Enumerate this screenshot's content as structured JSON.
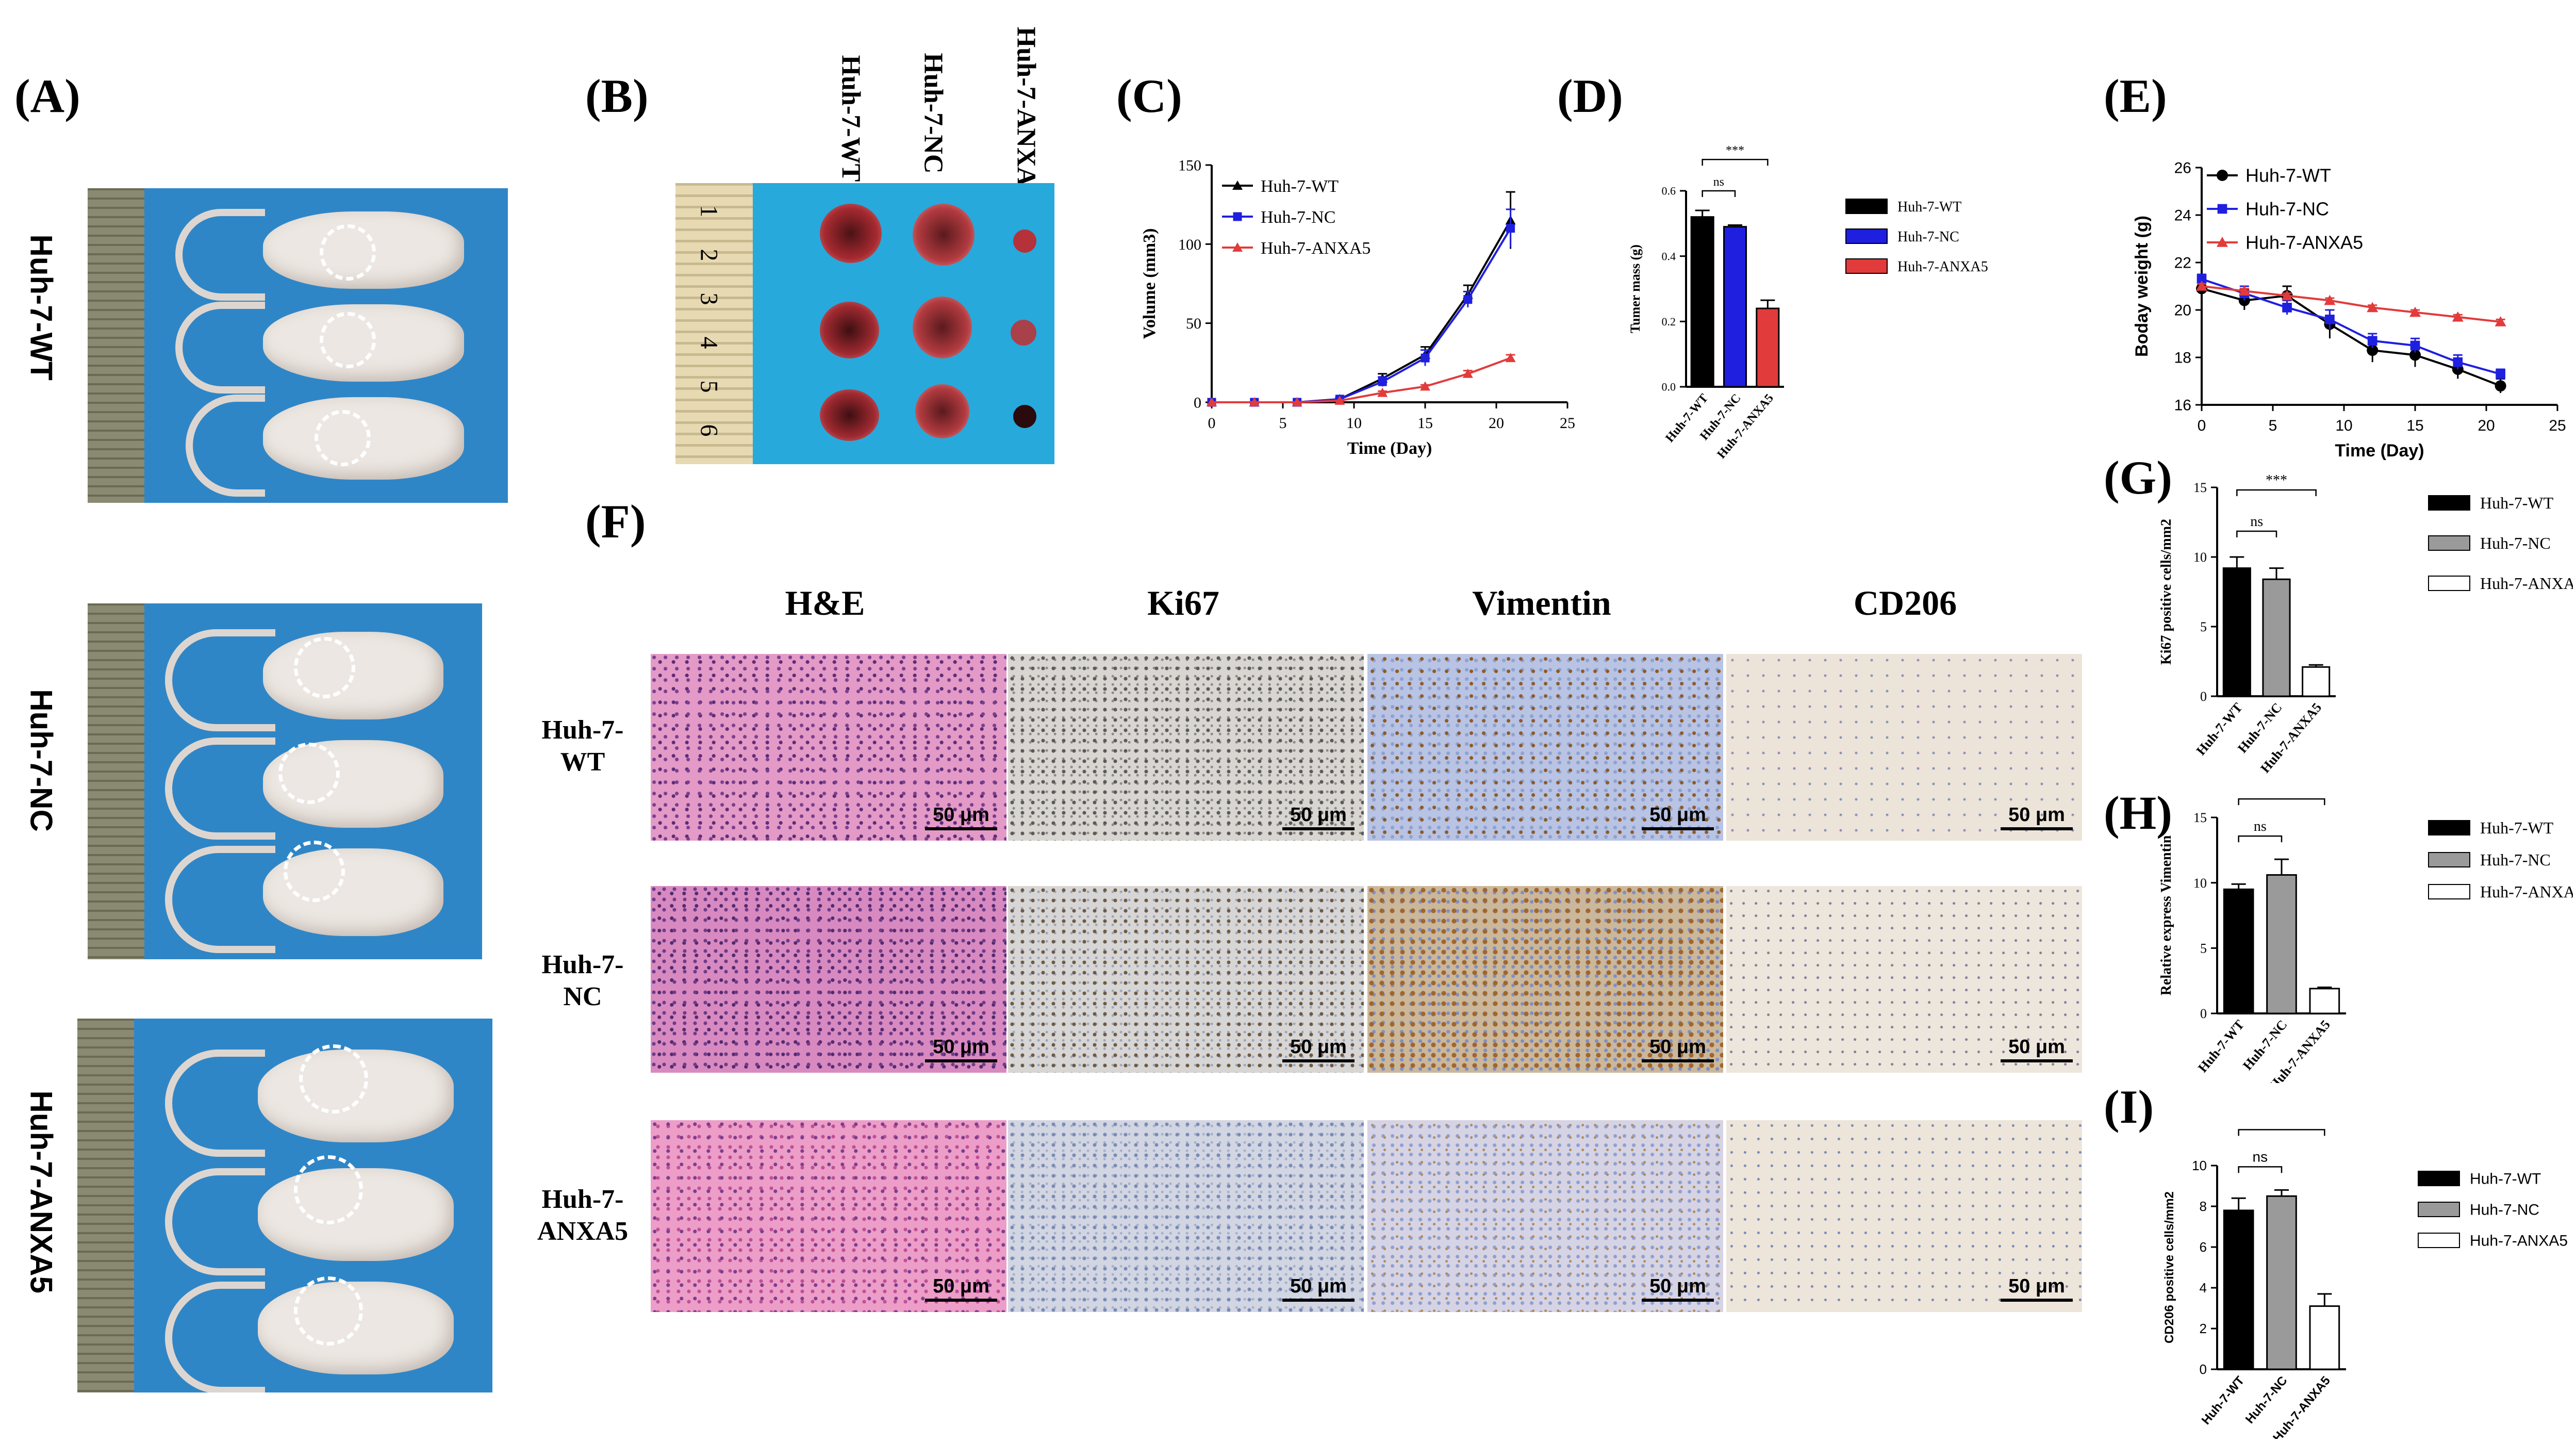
{
  "panels": {
    "A": "(A)",
    "B": "(B)",
    "C": "(C)",
    "D": "(D)",
    "E": "(E)",
    "F": "(F)",
    "G": "(G)",
    "H": "(H)",
    "I": "(I)"
  },
  "mouse_groups": [
    "Huh-7-WT",
    "Huh-7-NC",
    "Huh-7-ANXA5"
  ],
  "ruler_numbers": [
    "1",
    "2",
    "3",
    "4",
    "5",
    "6"
  ],
  "tumor_columns": [
    "Huh-7-WT",
    "Huh-7-NC",
    "Huh-7-ANXA5"
  ],
  "ihc": {
    "columns": [
      "H&E",
      "Ki67",
      "Vimentin",
      "CD206"
    ],
    "rows": [
      "Huh-7-\nWT",
      "Huh-7-\nNC",
      "Huh-7-\nANXA5"
    ],
    "scale_label": "50 μm"
  },
  "colors": {
    "wt": "#000000",
    "nc": "#1f1fe0",
    "anxa5": "#e23b3b",
    "nc_gray": "#9a9a9a",
    "anxa5_white": "#ffffff"
  },
  "chart_data": [
    {
      "id": "C",
      "type": "line",
      "xlabel": "Time (Day)",
      "ylabel": "Volume (mm3)",
      "xlim": [
        0,
        25
      ],
      "ylim": [
        0,
        150
      ],
      "xticks": [
        0,
        5,
        10,
        15,
        20,
        25
      ],
      "yticks": [
        0,
        50,
        100,
        150
      ],
      "legend": "top-left",
      "series": [
        {
          "name": "Huh-7-WT",
          "marker": "triangle",
          "x": [
            0,
            3,
            6,
            9,
            12,
            15,
            18,
            21
          ],
          "y": [
            0,
            0,
            0,
            2,
            15,
            30,
            68,
            115
          ],
          "err": [
            0,
            0,
            0,
            1,
            3,
            5,
            6,
            18
          ]
        },
        {
          "name": "Huh-7-NC",
          "marker": "square",
          "x": [
            0,
            3,
            6,
            9,
            12,
            15,
            18,
            21
          ],
          "y": [
            0,
            0,
            0,
            2,
            13,
            28,
            65,
            110
          ],
          "err": [
            0,
            0,
            0,
            1,
            3,
            5,
            5,
            12
          ]
        },
        {
          "name": "Huh-7-ANXA5",
          "marker": "triangle",
          "x": [
            0,
            3,
            6,
            9,
            12,
            15,
            18,
            21
          ],
          "y": [
            0,
            0,
            0,
            1,
            6,
            10,
            18,
            28
          ],
          "err": [
            0,
            0,
            0,
            0,
            1,
            1,
            2,
            2
          ]
        }
      ]
    },
    {
      "id": "D",
      "type": "bar",
      "ylabel": "Tumer mass (g)",
      "ylim": [
        0,
        0.6
      ],
      "yticks": [
        0.0,
        0.2,
        0.4,
        0.6
      ],
      "categories": [
        "Huh-7-WT",
        "Huh-7-NC",
        "Huh-7-ANXA5"
      ],
      "values": [
        0.52,
        0.49,
        0.24
      ],
      "err": [
        0.02,
        0.005,
        0.025
      ],
      "significance": [
        {
          "label": "ns"
        },
        {
          "label": "***"
        }
      ],
      "legend": "right"
    },
    {
      "id": "E",
      "type": "line",
      "xlabel": "Time (Day)",
      "ylabel": "Boday weight (g)",
      "xlim": [
        0,
        25
      ],
      "ylim": [
        16,
        26
      ],
      "xticks": [
        0,
        5,
        10,
        15,
        20,
        25
      ],
      "yticks": [
        16,
        18,
        20,
        22,
        24,
        26
      ],
      "legend": "top-left",
      "series": [
        {
          "name": "Huh-7-WT",
          "marker": "circle",
          "x": [
            0,
            3,
            6,
            9,
            12,
            15,
            18,
            21
          ],
          "y": [
            20.9,
            20.4,
            20.6,
            19.4,
            18.3,
            18.1,
            17.5,
            16.8
          ],
          "err": [
            0.3,
            0.4,
            0.4,
            0.6,
            0.5,
            0.5,
            0.4,
            0.3
          ]
        },
        {
          "name": "Huh-7-NC",
          "marker": "square",
          "x": [
            0,
            3,
            6,
            9,
            12,
            15,
            18,
            21
          ],
          "y": [
            21.3,
            20.7,
            20.1,
            19.6,
            18.7,
            18.5,
            17.8,
            17.3
          ],
          "err": [
            0.2,
            0.3,
            0.3,
            0.4,
            0.3,
            0.3,
            0.3,
            0.2
          ]
        },
        {
          "name": "Huh-7-ANXA5",
          "marker": "triangle",
          "x": [
            0,
            3,
            6,
            9,
            12,
            15,
            18,
            21
          ],
          "y": [
            21.0,
            20.8,
            20.6,
            20.4,
            20.1,
            19.9,
            19.7,
            19.5
          ],
          "err": [
            0.1,
            0.1,
            0.1,
            0.1,
            0.1,
            0.1,
            0.1,
            0.1
          ]
        }
      ]
    },
    {
      "id": "G",
      "type": "bar",
      "ylabel": "Ki67 positive cells/mm2",
      "ylim": [
        0,
        15
      ],
      "yticks": [
        0,
        5,
        10,
        15
      ],
      "categories": [
        "Huh-7-WT",
        "Huh-7-NC",
        "Huh-7-ANXA5"
      ],
      "values": [
        9.2,
        8.4,
        2.1
      ],
      "err": [
        0.8,
        0.8,
        0.15
      ],
      "significance": [
        {
          "label": "ns"
        },
        {
          "label": "***"
        }
      ],
      "legend": "right"
    },
    {
      "id": "H",
      "type": "bar",
      "ylabel": "Relative express Vimentin",
      "ylim": [
        0,
        15
      ],
      "yticks": [
        0,
        5,
        10,
        15
      ],
      "categories": [
        "Huh-7-WT",
        "Huh-7-NC",
        "Huh-7-ANXA5"
      ],
      "values": [
        9.5,
        10.6,
        1.9
      ],
      "err": [
        0.4,
        1.2,
        0.1
      ],
      "significance": [
        {
          "label": "ns"
        },
        {
          "label": "***"
        }
      ],
      "legend": "right"
    },
    {
      "id": "I",
      "type": "bar",
      "ylabel": "CD206 positive cells/mm2",
      "ylim": [
        0,
        10
      ],
      "yticks": [
        0,
        2,
        4,
        6,
        8,
        10
      ],
      "categories": [
        "Huh-7-WT",
        "Huh-7-NC",
        "Huh-7-ANXA5"
      ],
      "values": [
        7.8,
        8.5,
        3.1
      ],
      "err": [
        0.6,
        0.3,
        0.6
      ],
      "significance": [
        {
          "label": "ns"
        },
        {
          "label": "**"
        }
      ],
      "legend": "right"
    }
  ]
}
